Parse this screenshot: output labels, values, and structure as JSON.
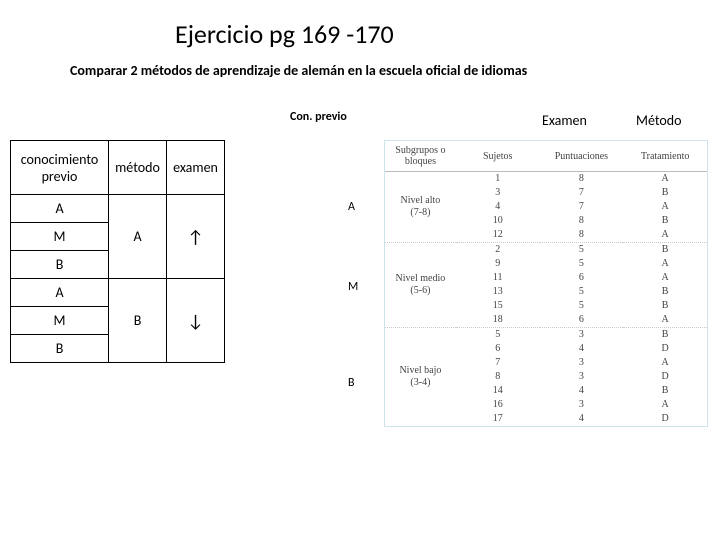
{
  "title": "Ejercicio pg 169 -170",
  "subtitle": "Comparar 2 métodos de aprendizaje de alemán en la escuela oficial de idiomas",
  "top_labels": {
    "con_previo": "Con. previo",
    "examen": "Examen",
    "metodo": "Método"
  },
  "left_table": {
    "headers": {
      "conoc": "conocimiento previo",
      "metodo": "método",
      "examen": "examen"
    },
    "rows_cp": [
      "A",
      "M",
      "B",
      "A",
      "M",
      "B"
    ],
    "group1": {
      "metodo": "A",
      "examen": "↑"
    },
    "group2": {
      "metodo": "B",
      "examen": "↓"
    }
  },
  "mid": {
    "a": "A",
    "m": "M",
    "b": "B"
  },
  "right_table": {
    "headers": {
      "sub": "Subgrupos o bloques",
      "suj": "Sujetos",
      "pun": "Puntuaciones",
      "tra": "Tratamiento"
    },
    "groups": [
      {
        "label": "Nivel alto (7-8)",
        "rows": [
          {
            "s": "1",
            "p": "8",
            "t": "A"
          },
          {
            "s": "3",
            "p": "7",
            "t": "B"
          },
          {
            "s": "4",
            "p": "7",
            "t": "A"
          },
          {
            "s": "10",
            "p": "8",
            "t": "B"
          },
          {
            "s": "12",
            "p": "8",
            "t": "A"
          }
        ]
      },
      {
        "label": "Nivel medio (5-6)",
        "rows": [
          {
            "s": "2",
            "p": "5",
            "t": "B"
          },
          {
            "s": "9",
            "p": "5",
            "t": "A"
          },
          {
            "s": "11",
            "p": "6",
            "t": "A"
          },
          {
            "s": "13",
            "p": "5",
            "t": "B"
          },
          {
            "s": "15",
            "p": "5",
            "t": "B"
          },
          {
            "s": "18",
            "p": "6",
            "t": "A"
          }
        ]
      },
      {
        "label": "Nivel bajo (3-4)",
        "rows": [
          {
            "s": "5",
            "p": "3",
            "t": "B"
          },
          {
            "s": "6",
            "p": "4",
            "t": "D"
          },
          {
            "s": "7",
            "p": "3",
            "t": "A"
          },
          {
            "s": "8",
            "p": "3",
            "t": "D"
          },
          {
            "s": "14",
            "p": "4",
            "t": "B"
          },
          {
            "s": "16",
            "p": "3",
            "t": "A"
          },
          {
            "s": "17",
            "p": "4",
            "t": "D"
          }
        ]
      }
    ]
  }
}
